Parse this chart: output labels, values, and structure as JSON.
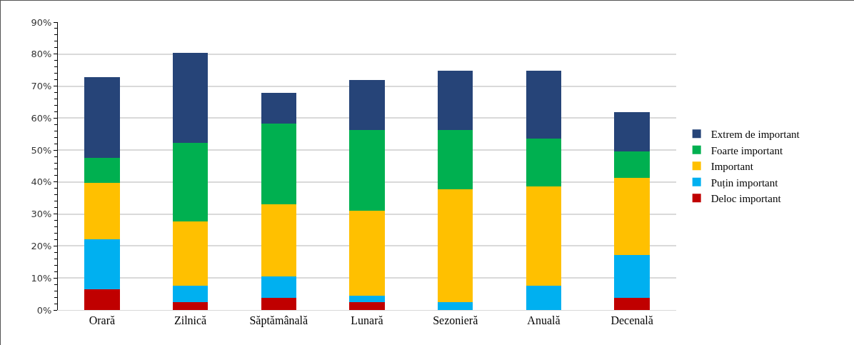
{
  "chart_data": {
    "type": "bar",
    "stacked": true,
    "categories": [
      "Orară",
      "Zilnică",
      "Săptămânală",
      "Lunară",
      "Sezonieră",
      "Anuală",
      "Decenală"
    ],
    "series": [
      {
        "name": "Deloc important",
        "color": "#c00000",
        "values": [
          6.5,
          2.5,
          3.7,
          2.5,
          0,
          0,
          3.7
        ]
      },
      {
        "name": "Puțin important",
        "color": "#00b0f0",
        "values": [
          15.7,
          5.2,
          6.8,
          2.0,
          2.5,
          7.7,
          13.6
        ]
      },
      {
        "name": "Important",
        "color": "#ffc000",
        "values": [
          17.6,
          20.1,
          22.5,
          26.5,
          35.3,
          30.9,
          24.1
        ]
      },
      {
        "name": "Foarte important",
        "color": "#00b050",
        "values": [
          7.7,
          24.5,
          25.3,
          25.3,
          18.5,
          14.9,
          8.1
        ]
      },
      {
        "name": "Extrem de important",
        "color": "#264478",
        "values": [
          25.3,
          28.0,
          9.5,
          15.6,
          18.5,
          21.3,
          12.4
        ]
      }
    ],
    "ylim": [
      0,
      90
    ],
    "yticks": [
      {
        "value": 0,
        "label": "0%"
      },
      {
        "value": 10,
        "label": "10%"
      },
      {
        "value": 20,
        "label": "20%"
      },
      {
        "value": 30,
        "label": "30%"
      },
      {
        "value": 40,
        "label": "40%"
      },
      {
        "value": 50,
        "label": "50%"
      },
      {
        "value": 60,
        "label": "60%"
      },
      {
        "value": 70,
        "label": "70%"
      },
      {
        "value": 80,
        "label": "80%"
      },
      {
        "value": 90,
        "label": "90%"
      }
    ],
    "grid": "y",
    "legend": "right"
  }
}
